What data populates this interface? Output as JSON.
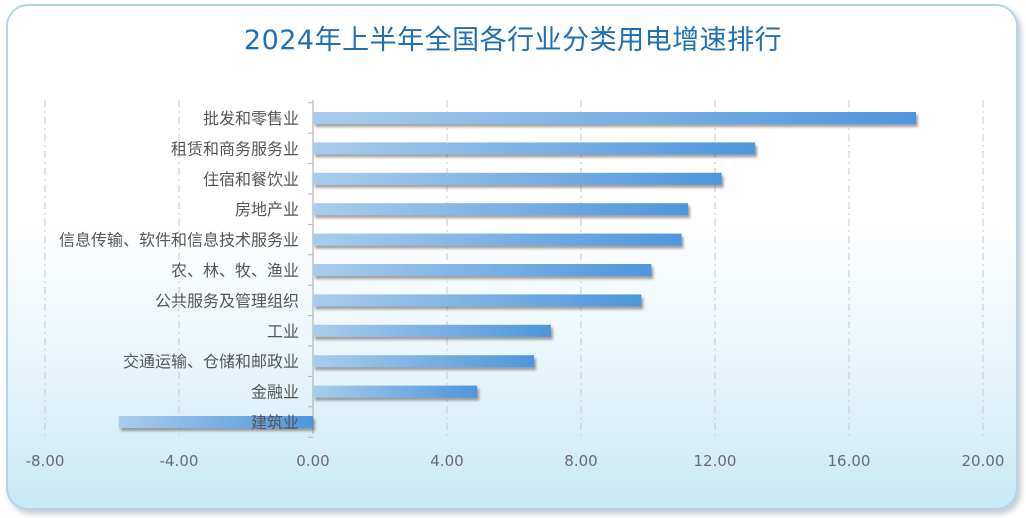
{
  "chart_data": {
    "type": "bar",
    "orientation": "horizontal",
    "title": "2024年上半年全国各行业分类用电增速排行",
    "xlabel": "",
    "ylabel": "",
    "xlim": [
      -8,
      20
    ],
    "xticks": [
      "-8.00",
      "-4.00",
      "0.00",
      "4.00",
      "8.00",
      "12.00",
      "16.00",
      "20.00"
    ],
    "xtick_values": [
      -8,
      -4,
      0,
      4,
      8,
      12,
      16,
      20
    ],
    "grid": true,
    "categories": [
      "批发和零售业",
      "租赁和商务服务业",
      "住宿和餐饮业",
      "房地产业",
      "信息传输、软件和信息技术服务业",
      "农、林、牧、渔业",
      "公共服务及管理组织",
      "工业",
      "交通运输、仓储和邮政业",
      "金融业",
      "建筑业"
    ],
    "values": [
      18.0,
      13.2,
      12.2,
      11.2,
      11.0,
      10.1,
      9.8,
      7.1,
      6.6,
      4.9,
      -5.8
    ],
    "colors": {
      "bar_start": "#a9cceb",
      "bar_end": "#4f95dc",
      "title": "#1f6fb2",
      "label": "#555555"
    }
  }
}
